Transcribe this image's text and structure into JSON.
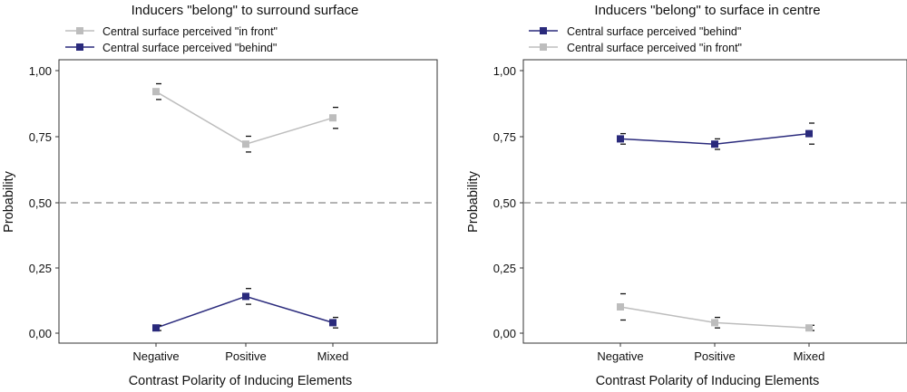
{
  "colors": {
    "gray": "#bdbdbd",
    "navy": "#2a2a7c",
    "reference_line": "#888888"
  },
  "chart_data": [
    {
      "type": "line",
      "title": "Inducers \"belong\" to surround surface",
      "xlabel": "Contrast Polarity of Inducing Elements",
      "ylabel": "Probability",
      "categories": [
        "Negative",
        "Positive",
        "Mixed"
      ],
      "ylim": [
        0,
        1
      ],
      "yticks": [
        "0,00",
        "0,25",
        "0,50",
        "0,75",
        "1,00"
      ],
      "ytick_values": [
        0,
        0.25,
        0.5,
        0.75,
        1.0
      ],
      "reference_line": 0.5,
      "legend_placement": "top-left, above plot",
      "series": [
        {
          "name": "Central surface perceived \"in front\"",
          "color": "#bdbdbd",
          "values": [
            0.92,
            0.72,
            0.82
          ],
          "error_low": [
            0.89,
            0.69,
            0.78
          ],
          "error_high": [
            0.95,
            0.75,
            0.86
          ]
        },
        {
          "name": "Central surface perceived \"behind\"",
          "color": "#2a2a7c",
          "values": [
            0.02,
            0.14,
            0.04
          ],
          "error_low": [
            0.01,
            0.11,
            0.02
          ],
          "error_high": [
            0.03,
            0.17,
            0.06
          ]
        }
      ]
    },
    {
      "type": "line",
      "title": "Inducers \"belong\" to surface in centre",
      "xlabel": "Contrast Polarity of Inducing Elements",
      "ylabel": "Probability",
      "categories": [
        "Negative",
        "Positive",
        "Mixed"
      ],
      "ylim": [
        0,
        1
      ],
      "yticks": [
        "0,00",
        "0,25",
        "0,50",
        "0,75",
        "1,00"
      ],
      "ytick_values": [
        0,
        0.25,
        0.5,
        0.75,
        1.0
      ],
      "reference_line": 0.5,
      "legend_placement": "top-left, above plot",
      "series": [
        {
          "name": "Central surface perceived \"behind\"",
          "color": "#2a2a7c",
          "values": [
            0.74,
            0.72,
            0.76
          ],
          "error_low": [
            0.72,
            0.7,
            0.72
          ],
          "error_high": [
            0.76,
            0.74,
            0.8
          ]
        },
        {
          "name": "Central surface perceived \"in front\"",
          "color": "#bdbdbd",
          "values": [
            0.1,
            0.04,
            0.02
          ],
          "error_low": [
            0.05,
            0.02,
            0.01
          ],
          "error_high": [
            0.15,
            0.06,
            0.03
          ]
        }
      ]
    }
  ]
}
